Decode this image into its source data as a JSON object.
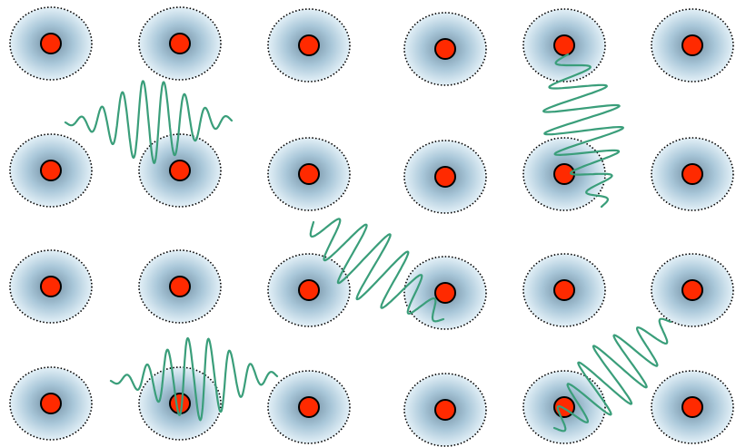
{
  "figure": {
    "colors": {
      "background": "#ffffff",
      "cloud_center": "#6e8a9e",
      "cloud_mid": "#a9c7d9",
      "cloud_edge": "#e3f0f7",
      "cloud_outline": "#000000",
      "nucleus_fill": "#ff2a00",
      "nucleus_stroke": "#000000",
      "wave_stroke": "#3a9e7a"
    },
    "lattice": {
      "rows": 4,
      "columns": 6
    },
    "wave_packets": [
      {
        "name": "wave-packet-1",
        "orientation": "horizontal"
      },
      {
        "name": "wave-packet-2",
        "orientation": "vertical"
      },
      {
        "name": "wave-packet-3",
        "orientation": "diagonal"
      },
      {
        "name": "wave-packet-4",
        "orientation": "horizontal"
      },
      {
        "name": "wave-packet-5",
        "orientation": "diagonal"
      }
    ]
  }
}
